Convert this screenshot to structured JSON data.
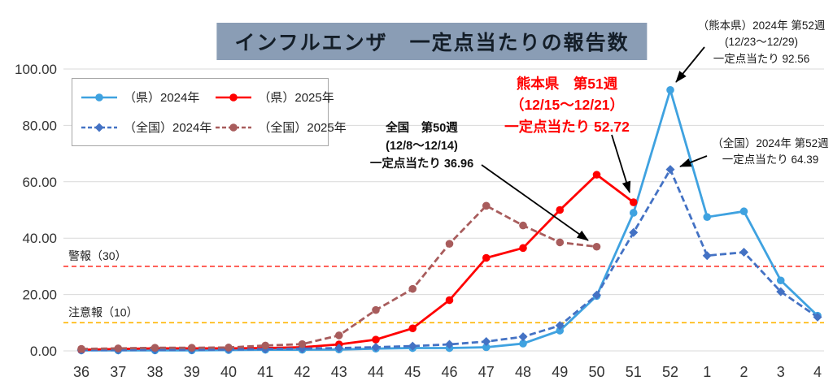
{
  "title": "インフルエンザ　一定点当たりの報告数",
  "colors": {
    "title_bg": "#8A9DB5",
    "title_text": "#141E28",
    "highlight_red": "#FF0000",
    "grid": "#D9D9D9"
  },
  "chart_data": {
    "type": "line",
    "categories": [
      "36",
      "37",
      "38",
      "39",
      "40",
      "41",
      "42",
      "43",
      "44",
      "45",
      "46",
      "47",
      "48",
      "49",
      "50",
      "51",
      "52",
      "1",
      "2",
      "3",
      "4"
    ],
    "ylim": [
      0,
      100
    ],
    "yticks": [
      0,
      20,
      40,
      60,
      80,
      100
    ],
    "ytick_labels": [
      "0.00",
      "20.00",
      "40.00",
      "60.00",
      "80.00",
      "100.00"
    ],
    "grid": true,
    "legend_position": "top-left-inside",
    "series": [
      {
        "name": "（県）2024年",
        "color": "#3FA2E0",
        "dash": false,
        "marker": "circle",
        "values": [
          0.2,
          0.2,
          0.2,
          0.2,
          0.3,
          0.4,
          0.4,
          0.5,
          0.8,
          1.0,
          1.0,
          1.3,
          2.6,
          7.2,
          19.5,
          49.0,
          92.56,
          47.5,
          49.5,
          25.0,
          12.5
        ]
      },
      {
        "name": "（県）2025年",
        "color": "#FF0000",
        "dash": false,
        "marker": "circle",
        "values": [
          0.4,
          0.7,
          0.9,
          0.9,
          0.9,
          1.0,
          1.3,
          2.3,
          4.0,
          8.0,
          18.0,
          33.0,
          36.5,
          50.0,
          62.5,
          52.72,
          null,
          null,
          null,
          null,
          null
        ]
      },
      {
        "name": "（全国）2024年",
        "color": "#4472C4",
        "dash": true,
        "marker": "diamond",
        "values": [
          0.3,
          0.3,
          0.35,
          0.4,
          0.5,
          0.65,
          0.8,
          1.0,
          1.3,
          1.7,
          2.3,
          3.3,
          5.0,
          9.0,
          19.8,
          42.0,
          64.39,
          33.8,
          35.0,
          21.0,
          12.0
        ]
      },
      {
        "name": "（全国）2025年",
        "color": "#A85C5C",
        "dash": true,
        "marker": "circle",
        "values": [
          0.7,
          0.9,
          1.1,
          1.1,
          1.2,
          1.9,
          2.4,
          5.5,
          14.5,
          22.0,
          38.0,
          51.5,
          44.5,
          38.5,
          36.96,
          null,
          null,
          null,
          null,
          null,
          null
        ]
      }
    ],
    "reference_lines": [
      {
        "label": "警報（30）",
        "value": 30,
        "color": "#FF3B30"
      },
      {
        "label": "注意報（10）",
        "value": 10,
        "color": "#FFB400"
      }
    ]
  },
  "annotations": {
    "kumamoto_2024_w52": {
      "lines": [
        "（熊本県）2024年 第52週",
        "(12/23～12/29)",
        "一定点当たり  92.56"
      ]
    },
    "kumamoto_2025_w51": {
      "lines": [
        "熊本県　第51週",
        "（12/15～12/21）",
        "一定点当たり  52.72"
      ]
    },
    "zenkoku_2025_w50": {
      "lines": [
        "全国　第50週",
        "(12/8～12/14)",
        "一定点当たり  36.96"
      ]
    },
    "zenkoku_2024_w52": {
      "lines": [
        "（全国）2024年 第52週",
        "一定点当たり  64.39"
      ]
    }
  }
}
